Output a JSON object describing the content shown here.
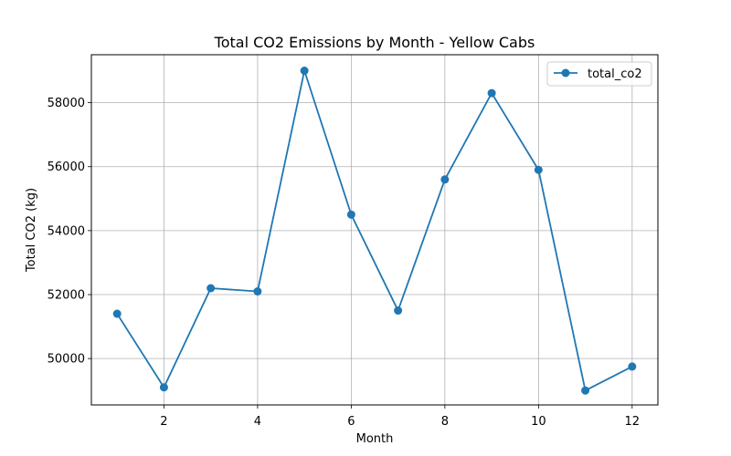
{
  "chart_data": {
    "type": "line",
    "title": "Total CO2 Emissions by Month - Yellow Cabs",
    "xlabel": "Month",
    "ylabel": "Total CO2 (kg)",
    "x": [
      1,
      2,
      3,
      4,
      5,
      6,
      7,
      8,
      9,
      10,
      11,
      12
    ],
    "xticks": [
      2,
      4,
      6,
      8,
      10,
      12
    ],
    "yticks": [
      50000,
      52000,
      54000,
      56000,
      58000
    ],
    "xlim": [
      0.45,
      12.55
    ],
    "ylim": [
      48550,
      59500
    ],
    "grid": true,
    "legend_position": "top-right",
    "series": [
      {
        "name": "total_co2",
        "color": "#1f77b4",
        "marker": "circle",
        "values": [
          51400,
          49100,
          52200,
          52100,
          59000,
          54500,
          51500,
          55600,
          58300,
          55900,
          49000,
          49750
        ]
      }
    ]
  }
}
